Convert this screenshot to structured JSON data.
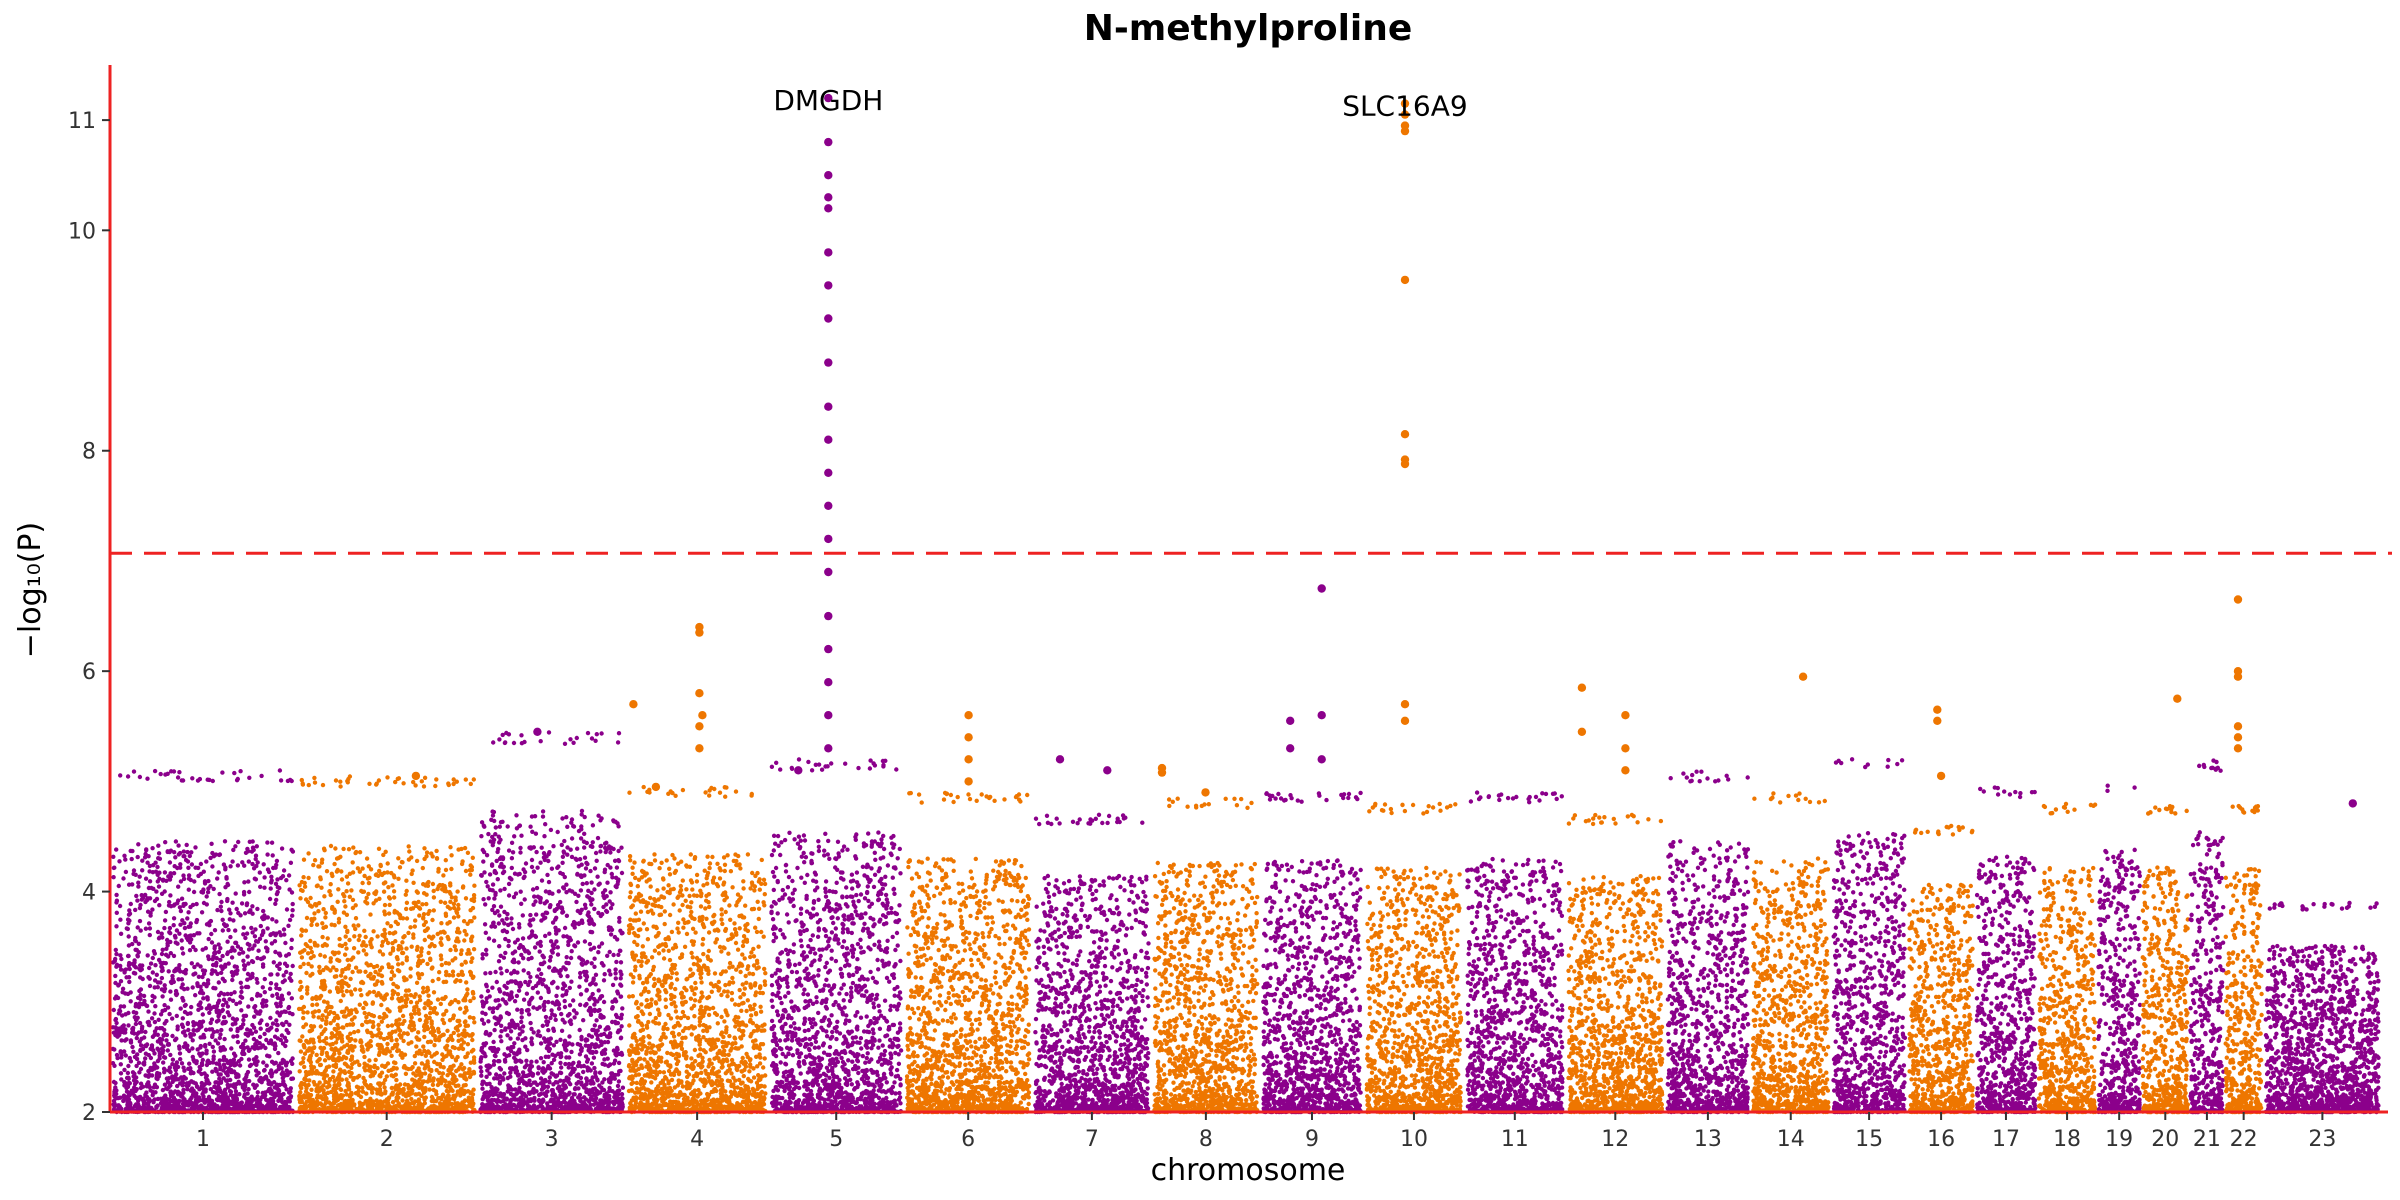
{
  "chart_data": {
    "type": "scatter",
    "title": "N-methylproline",
    "xlabel": "chromosome",
    "ylabel": "−log₁₀(P)",
    "ylim": [
      2,
      11.5
    ],
    "yticks": [
      2,
      4,
      6,
      8,
      10,
      11
    ],
    "significance_threshold": 7.07,
    "grid": false,
    "colors": {
      "odd": "#8B008B",
      "even": "#EE7600",
      "threshold": "#EE2222",
      "axis": "#EE2222"
    },
    "chromosomes": [
      {
        "label": "1",
        "start": 0,
        "end": 248,
        "max": 5.1,
        "peaks": []
      },
      {
        "label": "2",
        "start": 248,
        "end": 490,
        "max": 5.05,
        "peaks": [
          {
            "pos": 160,
            "y": 5.05
          }
        ]
      },
      {
        "label": "3",
        "start": 490,
        "end": 688,
        "max": 5.45,
        "peaks": [
          {
            "pos": 80,
            "y": 5.45
          }
        ]
      },
      {
        "label": "4",
        "start": 688,
        "end": 878,
        "max": 4.95,
        "peaks": [
          {
            "pos": 98,
            "y": 6.4
          },
          {
            "pos": 98,
            "y": 6.35
          },
          {
            "pos": 98,
            "y": 5.8
          },
          {
            "pos": 102,
            "y": 5.6
          },
          {
            "pos": 98,
            "y": 5.5
          },
          {
            "pos": 98,
            "y": 5.3
          },
          {
            "pos": 10,
            "y": 5.7
          },
          {
            "pos": 40,
            "y": 4.95
          }
        ]
      },
      {
        "label": "5",
        "start": 878,
        "end": 1059,
        "max": 5.2,
        "peaks": [
          {
            "pos": 80,
            "y": 11.2
          },
          {
            "pos": 80,
            "y": 10.8
          },
          {
            "pos": 80,
            "y": 10.5
          },
          {
            "pos": 80,
            "y": 10.3
          },
          {
            "pos": 80,
            "y": 10.2
          },
          {
            "pos": 80,
            "y": 9.8
          },
          {
            "pos": 80,
            "y": 9.5
          },
          {
            "pos": 80,
            "y": 9.2
          },
          {
            "pos": 80,
            "y": 8.8
          },
          {
            "pos": 80,
            "y": 8.4
          },
          {
            "pos": 80,
            "y": 8.1
          },
          {
            "pos": 80,
            "y": 7.8
          },
          {
            "pos": 80,
            "y": 7.5
          },
          {
            "pos": 80,
            "y": 7.2
          },
          {
            "pos": 80,
            "y": 6.9
          },
          {
            "pos": 80,
            "y": 6.5
          },
          {
            "pos": 80,
            "y": 6.2
          },
          {
            "pos": 80,
            "y": 5.9
          },
          {
            "pos": 80,
            "y": 5.6
          },
          {
            "pos": 80,
            "y": 5.3
          },
          {
            "pos": 40,
            "y": 5.1
          }
        ]
      },
      {
        "label": "6",
        "start": 1059,
        "end": 1230,
        "max": 4.9,
        "peaks": [
          {
            "pos": 86,
            "y": 5.6
          },
          {
            "pos": 86,
            "y": 5.4
          },
          {
            "pos": 86,
            "y": 5.2
          },
          {
            "pos": 86,
            "y": 5.0
          }
        ]
      },
      {
        "label": "7",
        "start": 1230,
        "end": 1389,
        "max": 4.7,
        "peaks": [
          {
            "pos": 37,
            "y": 5.2
          },
          {
            "pos": 100,
            "y": 5.1
          }
        ]
      },
      {
        "label": "8",
        "start": 1389,
        "end": 1534,
        "max": 4.85,
        "peaks": [
          {
            "pos": 14,
            "y": 5.12
          },
          {
            "pos": 14,
            "y": 5.08
          },
          {
            "pos": 72,
            "y": 4.9
          }
        ]
      },
      {
        "label": "9",
        "start": 1534,
        "end": 1672,
        "max": 4.9,
        "peaks": [
          {
            "pos": 82,
            "y": 6.75
          },
          {
            "pos": 40,
            "y": 5.55
          },
          {
            "pos": 40,
            "y": 5.3
          },
          {
            "pos": 82,
            "y": 5.6
          },
          {
            "pos": 82,
            "y": 5.2
          }
        ]
      },
      {
        "label": "10",
        "start": 1672,
        "end": 1806,
        "max": 4.8,
        "peaks": [
          {
            "pos": 55,
            "y": 11.15
          },
          {
            "pos": 55,
            "y": 11.05
          },
          {
            "pos": 55,
            "y": 10.95
          },
          {
            "pos": 55,
            "y": 10.9
          },
          {
            "pos": 55,
            "y": 9.55
          },
          {
            "pos": 55,
            "y": 8.15
          },
          {
            "pos": 55,
            "y": 7.92
          },
          {
            "pos": 55,
            "y": 7.88
          },
          {
            "pos": 55,
            "y": 5.7
          },
          {
            "pos": 55,
            "y": 5.55
          }
        ]
      },
      {
        "label": "11",
        "start": 1806,
        "end": 1941,
        "max": 4.9,
        "peaks": []
      },
      {
        "label": "12",
        "start": 1941,
        "end": 2074,
        "max": 4.7,
        "peaks": [
          {
            "pos": 22,
            "y": 5.85
          },
          {
            "pos": 22,
            "y": 5.45
          },
          {
            "pos": 80,
            "y": 5.6
          },
          {
            "pos": 80,
            "y": 5.3
          },
          {
            "pos": 80,
            "y": 5.1
          }
        ]
      },
      {
        "label": "13",
        "start": 2074,
        "end": 2188,
        "max": 5.1,
        "peaks": []
      },
      {
        "label": "14",
        "start": 2188,
        "end": 2295,
        "max": 4.9,
        "peaks": [
          {
            "pos": 70,
            "y": 5.95
          }
        ]
      },
      {
        "label": "15",
        "start": 2295,
        "end": 2397,
        "max": 5.2,
        "peaks": []
      },
      {
        "label": "16",
        "start": 2397,
        "end": 2487,
        "max": 4.6,
        "peaks": [
          {
            "pos": 40,
            "y": 5.65
          },
          {
            "pos": 40,
            "y": 5.55
          },
          {
            "pos": 45,
            "y": 5.05
          }
        ]
      },
      {
        "label": "17",
        "start": 2487,
        "end": 2570,
        "max": 4.95,
        "peaks": []
      },
      {
        "label": "18",
        "start": 2570,
        "end": 2650,
        "max": 4.8,
        "peaks": []
      },
      {
        "label": "19",
        "start": 2650,
        "end": 2709,
        "max": 5.0,
        "peaks": []
      },
      {
        "label": "20",
        "start": 2709,
        "end": 2773,
        "max": 4.8,
        "peaks": [
          {
            "pos": 48,
            "y": 5.75
          }
        ]
      },
      {
        "label": "21",
        "start": 2773,
        "end": 2820,
        "max": 5.2,
        "peaks": []
      },
      {
        "label": "22",
        "start": 2820,
        "end": 2871,
        "max": 4.8,
        "peaks": [
          {
            "pos": 18,
            "y": 6.65
          },
          {
            "pos": 18,
            "y": 6.0
          },
          {
            "pos": 18,
            "y": 5.95
          },
          {
            "pos": 18,
            "y": 5.5
          },
          {
            "pos": 18,
            "y": 5.4
          },
          {
            "pos": 18,
            "y": 5.3
          }
        ]
      },
      {
        "label": "23",
        "start": 2871,
        "end": 3030,
        "max": 3.9,
        "peaks": [
          {
            "pos": 120,
            "y": 4.8
          }
        ]
      }
    ],
    "annotations": [
      {
        "text": "DMGDH",
        "chrom": "5",
        "pos": 80,
        "y": 11.2
      },
      {
        "text": "SLC16A9",
        "chrom": "10",
        "pos": 55,
        "y": 11.15
      }
    ]
  }
}
